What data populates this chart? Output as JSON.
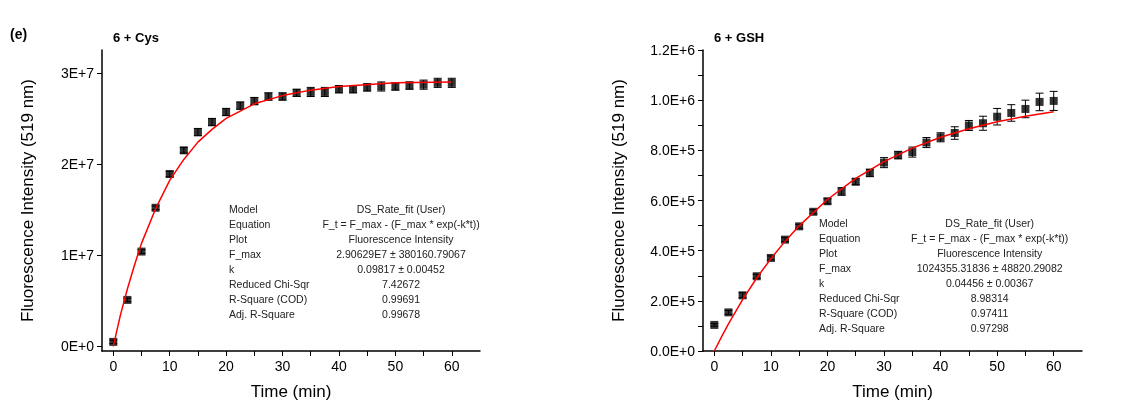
{
  "chart_data": [
    {
      "type": "scatter",
      "title": "6 + Cys",
      "xlabel": "Time (min)",
      "ylabel": "Fluorescence Intensity (519 nm)",
      "annotations": [
        "(e)",
        "Model",
        "DS_Rate_fit (User)",
        "Equation",
        "F_t = F_max - (F_max * exp(-k*t))",
        "Plot",
        "Fluorescence Intensity",
        "F_max",
        "2.90629E7 ± 380160.79067",
        "k",
        "0.09817 ± 0.00452",
        "Reduced Chi-Sqr",
        "7.42672",
        "R-Square (COD)",
        "0.99691",
        "Adj. R-Square",
        "0.99678"
      ],
      "xlim": [
        -2,
        65
      ],
      "xticks": [
        0,
        {
          "value": 5,
          "label": null
        },
        10,
        {
          "value": 15,
          "label": null
        },
        20,
        {
          "value": 25,
          "label": null
        },
        30,
        {
          "value": 35,
          "label": null
        },
        40,
        {
          "value": 45,
          "label": null
        },
        50,
        {
          "value": 55,
          "label": null
        },
        60
      ],
      "ylim": [
        -500000,
        32500000
      ],
      "yticks": [
        {
          "value": 0,
          "label": "0E+0"
        },
        {
          "value": 10000000,
          "label": "1E+7"
        },
        {
          "value": 20000000,
          "label": "2E+7"
        },
        {
          "value": 30000000,
          "label": "3E+7"
        }
      ],
      "marker": "square",
      "series": [
        {
          "color": "#000000",
          "x": [
            0,
            2.5,
            5,
            7.5,
            10,
            12.5,
            15,
            17.5,
            20,
            22.5,
            25,
            27.5,
            30,
            32.5,
            35,
            37.5,
            40,
            42.5,
            45,
            47.5,
            50,
            52.5,
            55,
            57.5,
            60
          ],
          "values": [
            500000,
            5100000,
            10400000,
            15200000,
            18900000,
            21500000,
            23500000,
            24600000,
            25700000,
            26400000,
            26900000,
            27400000,
            27400000,
            27800000,
            27900000,
            27900000,
            28200000,
            28200000,
            28400000,
            28500000,
            28500000,
            28600000,
            28700000,
            28900000,
            28900000
          ],
          "errors": [
            200000,
            200000,
            200000,
            200000,
            300000,
            300000,
            400000,
            400000,
            400000,
            400000,
            400000,
            400000,
            400000,
            400000,
            500000,
            500000,
            400000,
            400000,
            400000,
            500000,
            400000,
            400000,
            500000,
            500000,
            500000
          ]
        },
        {
          "type": "line",
          "color": "#ff0000",
          "marker": "none",
          "x": [
            0,
            1.25,
            2.5,
            3.75,
            5,
            7.5,
            10,
            12.5,
            15,
            17.5,
            20,
            25,
            30,
            35,
            40,
            50,
            60
          ],
          "values": [
            0,
            3400000,
            6300000,
            8900000,
            11300000,
            15100000,
            18200000,
            20500000,
            22400000,
            23800000,
            25000000,
            26600000,
            27500000,
            28100000,
            28500000,
            28900000,
            29000000
          ]
        }
      ]
    },
    {
      "type": "scatter",
      "title": "6 + GSH",
      "xlabel": "Time (min)",
      "ylabel": "Fluorescence Intensity (519 nm)",
      "annotations": [
        "Model",
        "DS_Rate_fit (User)",
        "Equation",
        "F_t = F_max - (F_max * exp(-k*t))",
        "Plot",
        "Fluorescence Intensity",
        "F_max",
        "1024355.31836 ± 48820.29082",
        "k",
        "0.04456 ± 0.00367",
        "Reduced Chi-Sqr",
        "8.98314",
        "R-Square (COD)",
        "0.97411",
        "Adj. R-Square",
        "0.97298"
      ],
      "xlim": [
        -2,
        65
      ],
      "xticks": [
        0,
        {
          "value": 5,
          "label": null
        },
        10,
        {
          "value": 15,
          "label": null
        },
        20,
        {
          "value": 25,
          "label": null
        },
        30,
        {
          "value": 35,
          "label": null
        },
        40,
        {
          "value": 45,
          "label": null
        },
        50,
        {
          "value": 55,
          "label": null
        },
        60
      ],
      "ylim": [
        0,
        1200000
      ],
      "yticks": [
        {
          "value": 0,
          "label": "0.0E+0"
        },
        {
          "value": 100000,
          "label": null
        },
        {
          "value": 200000,
          "label": "2.0E+5"
        },
        {
          "value": 300000,
          "label": null
        },
        {
          "value": 400000,
          "label": "4.0E+5"
        },
        {
          "value": 500000,
          "label": null
        },
        {
          "value": 600000,
          "label": "6.0E+5"
        },
        {
          "value": 700000,
          "label": null
        },
        {
          "value": 800000,
          "label": "8.0E+5"
        },
        {
          "value": 900000,
          "label": null
        },
        {
          "value": 1000000,
          "label": "1.0E+6"
        },
        {
          "value": 1100000,
          "label": null
        },
        {
          "value": 1200000,
          "label": "1.2E+6"
        }
      ],
      "marker": "square",
      "series": [
        {
          "color": "#000000",
          "x": [
            0,
            2.5,
            5,
            7.5,
            10,
            12.5,
            15,
            17.5,
            20,
            22.5,
            25,
            27.5,
            30,
            32.5,
            35,
            37.5,
            40,
            42.5,
            45,
            47.5,
            50,
            52.5,
            55,
            57.5,
            60
          ],
          "values": [
            104000,
            154000,
            222000,
            298000,
            371000,
            444000,
            497000,
            555000,
            597000,
            636000,
            675000,
            710000,
            751000,
            781000,
            793000,
            831000,
            852000,
            869000,
            899000,
            908000,
            934000,
            949000,
            965000,
            993000,
            997000
          ],
          "errors": [
            5000,
            8000,
            10000,
            8000,
            8000,
            8000,
            8000,
            8000,
            10000,
            15000,
            12000,
            15000,
            20000,
            15000,
            20000,
            20000,
            18000,
            25000,
            20000,
            28000,
            33000,
            33000,
            35000,
            35000,
            38000
          ]
        },
        {
          "type": "line",
          "color": "#ff0000",
          "marker": "none",
          "x": [
            0,
            1.25,
            2.5,
            5,
            7.5,
            10,
            12.5,
            15,
            20,
            25,
            30,
            35,
            40,
            45,
            50,
            55,
            60
          ],
          "values": [
            0,
            55000,
            108000,
            205000,
            291000,
            368000,
            437000,
            499000,
            604000,
            688000,
            755000,
            809000,
            852000,
            886000,
            914000,
            936000,
            954000
          ]
        }
      ]
    }
  ]
}
